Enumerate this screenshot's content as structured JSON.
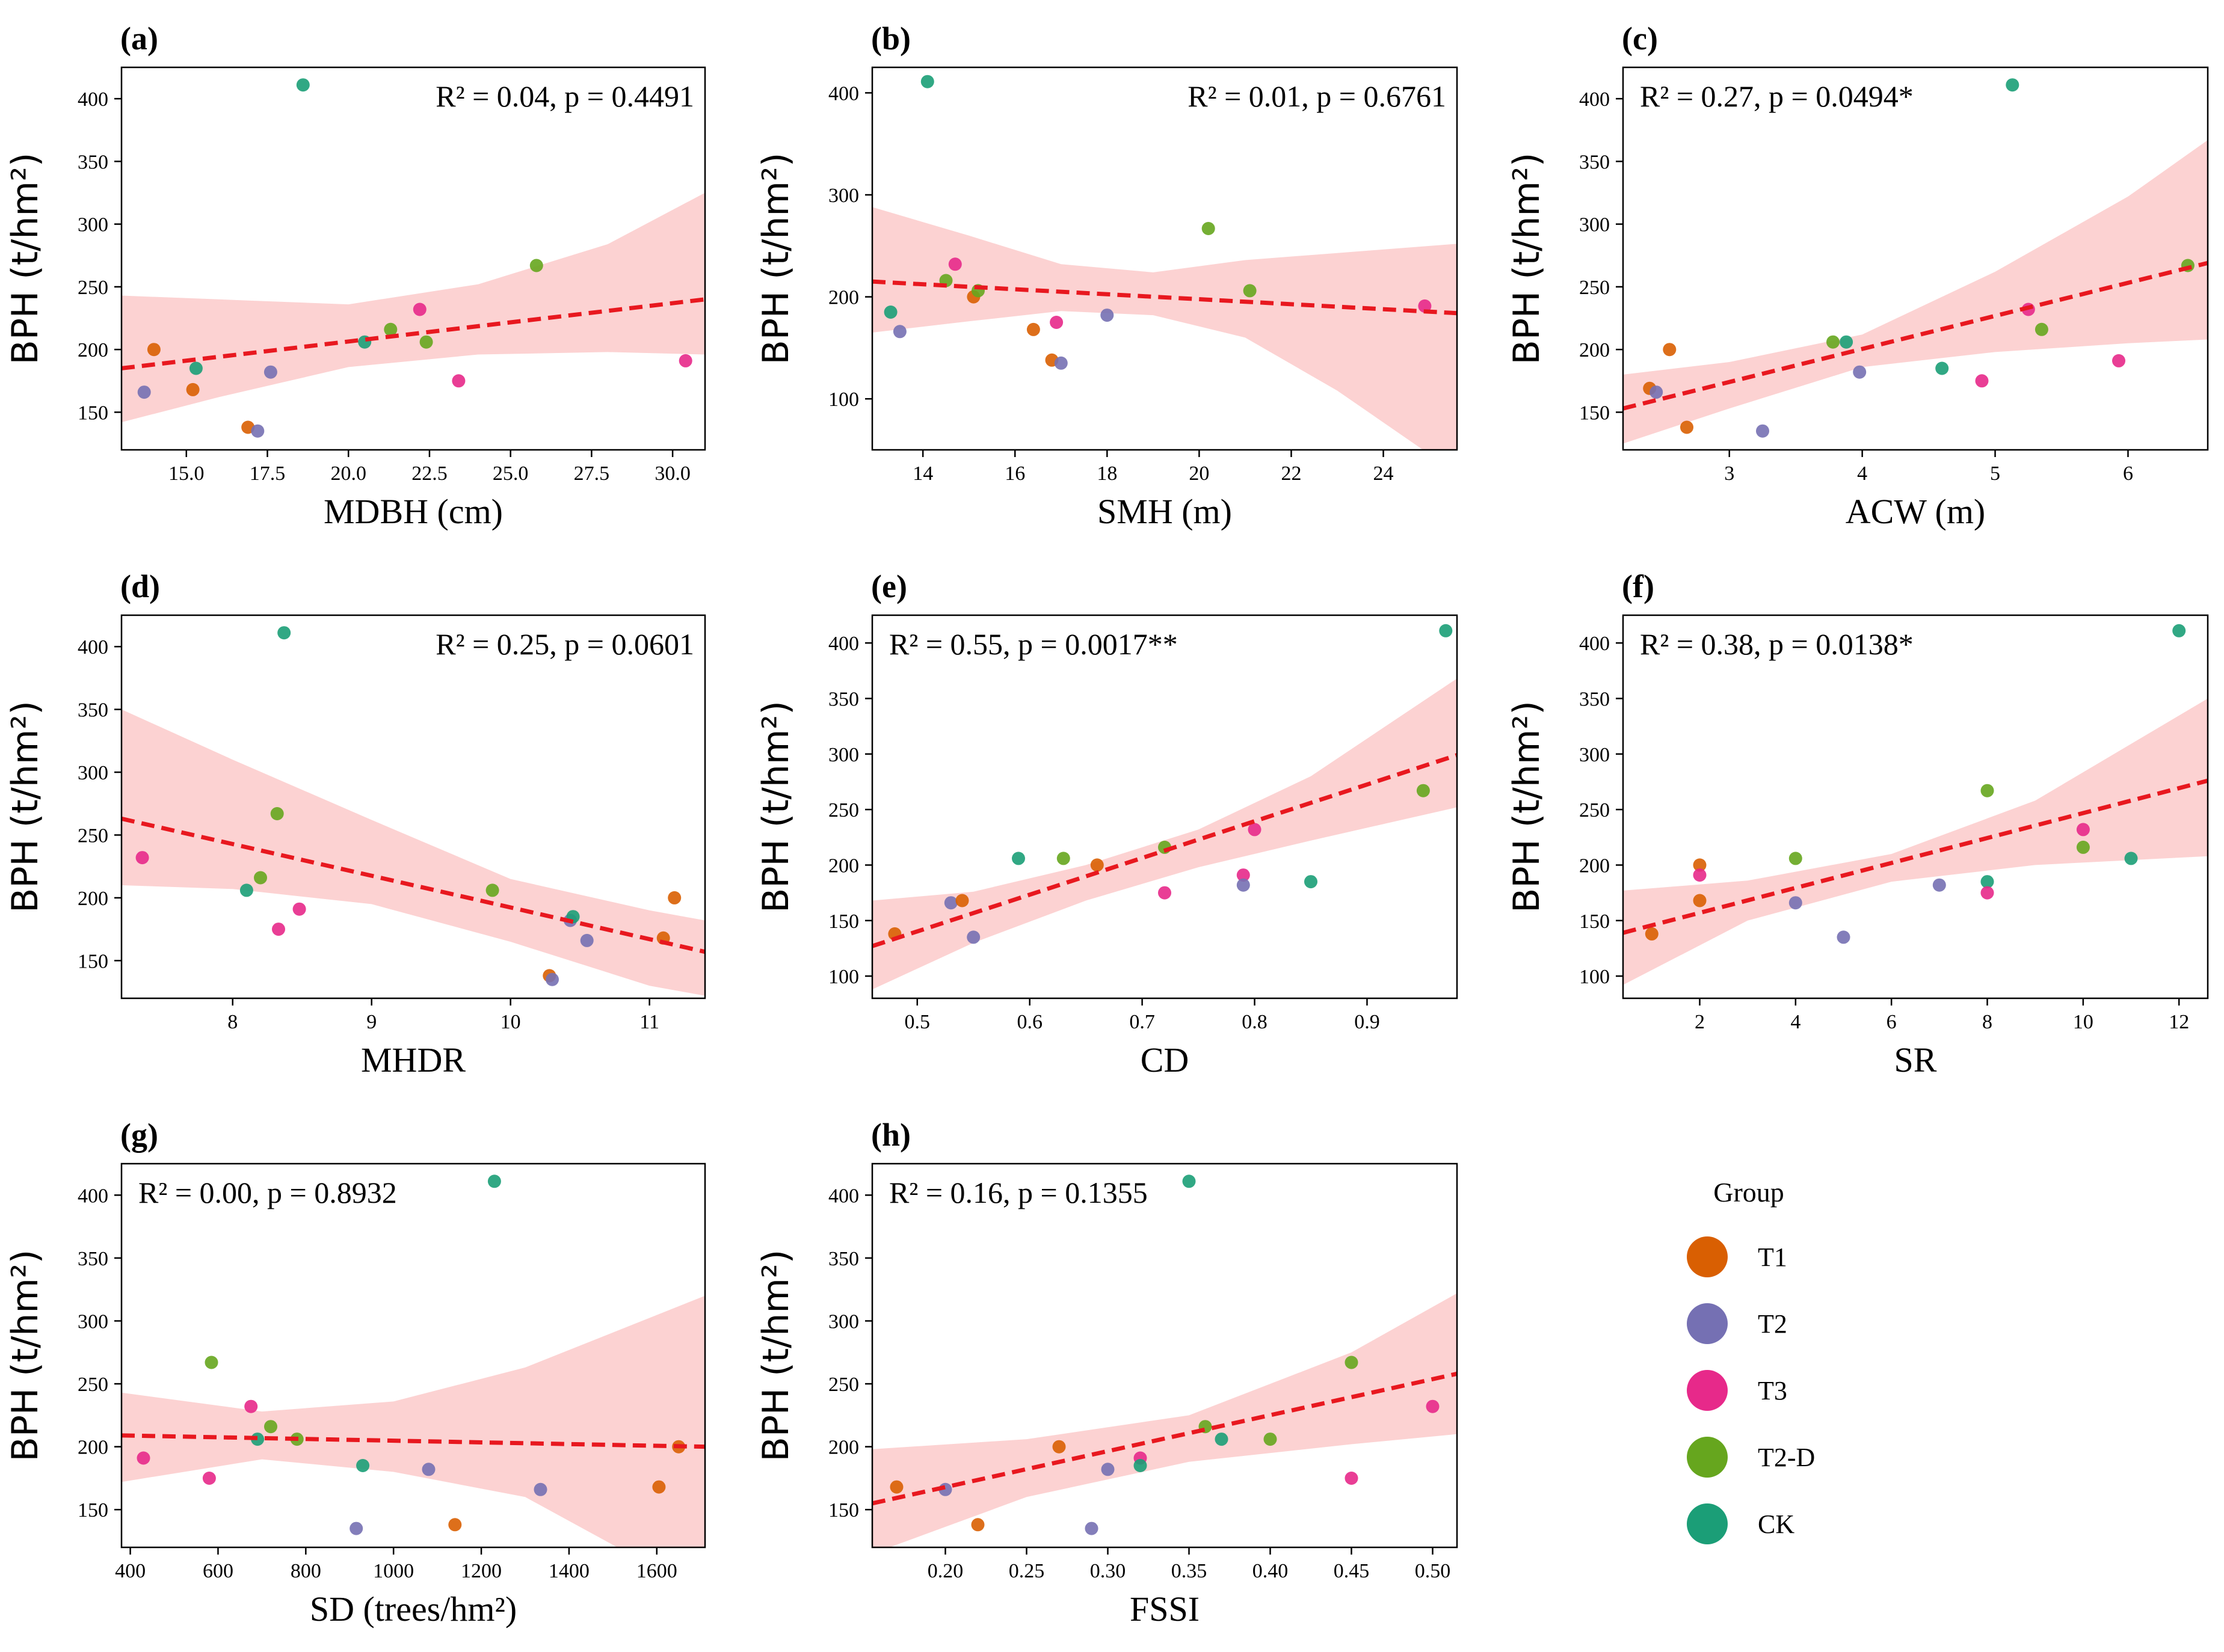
{
  "groups": [
    {
      "name": "T1",
      "color": "#d95f02"
    },
    {
      "name": "T2",
      "color": "#7570b3"
    },
    {
      "name": "T3",
      "color": "#e7298a"
    },
    {
      "name": "T2-D",
      "color": "#66a61e"
    },
    {
      "name": "CK",
      "color": "#1b9e77"
    }
  ],
  "legend": {
    "title": "Group"
  },
  "ylabel": "BPH (t/hm²)",
  "fit_color": "#e8181f",
  "band_color": "#fbcaca",
  "chart_data": [
    {
      "type": "scatter",
      "letter": "(a)",
      "xlabel": "MDBH (cm)",
      "ylabel": "BPH (t/hm²)",
      "stats": "R² = 0.04,  p = 0.4491",
      "stats_pos": "top-right",
      "xlim": [
        13.0,
        31.0
      ],
      "ylim": [
        120,
        425
      ],
      "xticks": [
        15.0,
        17.5,
        20.0,
        22.5,
        25.0,
        27.5,
        30.0
      ],
      "xtick_labels": [
        "15.0",
        "17.5",
        "20.0",
        "22.5",
        "25.0",
        "27.5",
        "30.0"
      ],
      "yticks": [
        150,
        200,
        250,
        300,
        350,
        400
      ],
      "fit": {
        "x": [
          13.0,
          31.0
        ],
        "y": [
          185,
          240
        ]
      },
      "band": {
        "x": [
          13.0,
          16.0,
          20.0,
          24.0,
          28.0,
          31.0
        ],
        "upper": [
          243,
          240,
          236,
          252,
          284,
          325
        ],
        "lower": [
          142,
          162,
          186,
          196,
          198,
          196
        ]
      },
      "points": [
        {
          "x": 13.7,
          "y": 166,
          "g": "T2"
        },
        {
          "x": 14.0,
          "y": 200,
          "g": "T1"
        },
        {
          "x": 15.2,
          "y": 168,
          "g": "T1"
        },
        {
          "x": 15.3,
          "y": 185,
          "g": "CK"
        },
        {
          "x": 16.9,
          "y": 138,
          "g": "T1"
        },
        {
          "x": 17.2,
          "y": 135,
          "g": "T2"
        },
        {
          "x": 17.6,
          "y": 182,
          "g": "T2"
        },
        {
          "x": 18.6,
          "y": 411,
          "g": "CK"
        },
        {
          "x": 20.5,
          "y": 206,
          "g": "CK"
        },
        {
          "x": 21.3,
          "y": 216,
          "g": "T2-D"
        },
        {
          "x": 22.2,
          "y": 232,
          "g": "T3"
        },
        {
          "x": 22.4,
          "y": 206,
          "g": "T2-D"
        },
        {
          "x": 23.4,
          "y": 175,
          "g": "T3"
        },
        {
          "x": 25.8,
          "y": 267,
          "g": "T2-D"
        },
        {
          "x": 30.4,
          "y": 191,
          "g": "T3"
        }
      ]
    },
    {
      "type": "scatter",
      "letter": "(b)",
      "xlabel": "SMH (m)",
      "ylabel": "BPH (t/hm²)",
      "stats": "R² = 0.01,  p = 0.6761",
      "stats_pos": "top-right",
      "xlim": [
        12.9,
        25.6
      ],
      "ylim": [
        50,
        425
      ],
      "xticks": [
        14,
        16,
        18,
        20,
        22,
        24
      ],
      "xtick_labels": [
        "14",
        "16",
        "18",
        "20",
        "22",
        "24"
      ],
      "yticks": [
        100,
        200,
        300,
        400
      ],
      "fit": {
        "x": [
          12.9,
          25.6
        ],
        "y": [
          215,
          184
        ]
      },
      "band": {
        "x": [
          12.9,
          15.0,
          17.0,
          19.0,
          21.0,
          23.0,
          25.6
        ],
        "upper": [
          288,
          260,
          232,
          224,
          236,
          243,
          252
        ],
        "lower": [
          165,
          176,
          186,
          182,
          160,
          108,
          27
        ]
      },
      "points": [
        {
          "x": 13.3,
          "y": 185,
          "g": "CK"
        },
        {
          "x": 13.5,
          "y": 166,
          "g": "T2"
        },
        {
          "x": 14.1,
          "y": 411,
          "g": "CK"
        },
        {
          "x": 14.5,
          "y": 216,
          "g": "T2-D"
        },
        {
          "x": 14.7,
          "y": 232,
          "g": "T3"
        },
        {
          "x": 15.1,
          "y": 200,
          "g": "T1"
        },
        {
          "x": 15.2,
          "y": 206,
          "g": "T2-D"
        },
        {
          "x": 16.4,
          "y": 168,
          "g": "T1"
        },
        {
          "x": 16.8,
          "y": 138,
          "g": "T1"
        },
        {
          "x": 16.9,
          "y": 175,
          "g": "T3"
        },
        {
          "x": 17.0,
          "y": 135,
          "g": "T2"
        },
        {
          "x": 18.0,
          "y": 182,
          "g": "T2"
        },
        {
          "x": 20.2,
          "y": 267,
          "g": "T2-D"
        },
        {
          "x": 21.1,
          "y": 206,
          "g": "T2-D"
        },
        {
          "x": 24.9,
          "y": 191,
          "g": "T3"
        }
      ]
    },
    {
      "type": "scatter",
      "letter": "(c)",
      "xlabel": "ACW (m)",
      "ylabel": "BPH (t/hm²)",
      "stats": "R² = 0.27,  p = 0.0494*",
      "stats_pos": "top-left",
      "xlim": [
        2.2,
        6.6
      ],
      "ylim": [
        120,
        425
      ],
      "xticks": [
        3,
        4,
        5,
        6
      ],
      "xtick_labels": [
        "3",
        "4",
        "5",
        "6"
      ],
      "yticks": [
        150,
        200,
        250,
        300,
        350,
        400
      ],
      "fit": {
        "x": [
          2.2,
          6.6
        ],
        "y": [
          153,
          269
        ]
      },
      "band": {
        "x": [
          2.2,
          3.0,
          4.0,
          5.0,
          6.0,
          6.6
        ],
        "upper": [
          180,
          190,
          212,
          262,
          322,
          367
        ],
        "lower": [
          125,
          153,
          186,
          198,
          205,
          208
        ]
      },
      "points": [
        {
          "x": 2.4,
          "y": 169,
          "g": "T1"
        },
        {
          "x": 2.45,
          "y": 166,
          "g": "T2"
        },
        {
          "x": 2.55,
          "y": 200,
          "g": "T1"
        },
        {
          "x": 2.68,
          "y": 138,
          "g": "T1"
        },
        {
          "x": 3.25,
          "y": 135,
          "g": "T2"
        },
        {
          "x": 3.78,
          "y": 206,
          "g": "T2-D"
        },
        {
          "x": 3.88,
          "y": 206,
          "g": "CK"
        },
        {
          "x": 3.98,
          "y": 182,
          "g": "T2"
        },
        {
          "x": 4.6,
          "y": 185,
          "g": "CK"
        },
        {
          "x": 4.9,
          "y": 175,
          "g": "T3"
        },
        {
          "x": 5.13,
          "y": 411,
          "g": "CK"
        },
        {
          "x": 5.25,
          "y": 232,
          "g": "T3"
        },
        {
          "x": 5.35,
          "y": 216,
          "g": "T2-D"
        },
        {
          "x": 5.93,
          "y": 191,
          "g": "T3"
        },
        {
          "x": 6.45,
          "y": 267,
          "g": "T2-D"
        }
      ]
    },
    {
      "type": "scatter",
      "letter": "(d)",
      "xlabel": "MHDR",
      "ylabel": "BPH (t/hm²)",
      "stats": "R² = 0.25,  p = 0.0601",
      "stats_pos": "top-right",
      "xlim": [
        7.2,
        11.4
      ],
      "ylim": [
        120,
        425
      ],
      "xticks": [
        8,
        9,
        10,
        11
      ],
      "xtick_labels": [
        "8",
        "9",
        "10",
        "11"
      ],
      "yticks": [
        150,
        200,
        250,
        300,
        350,
        400
      ],
      "fit": {
        "x": [
          7.2,
          11.4
        ],
        "y": [
          263,
          157
        ]
      },
      "band": {
        "x": [
          7.2,
          8.0,
          9.0,
          10.0,
          11.0,
          11.4
        ],
        "upper": [
          350,
          310,
          262,
          215,
          190,
          182
        ],
        "lower": [
          210,
          207,
          195,
          165,
          130,
          122
        ]
      },
      "points": [
        {
          "x": 7.35,
          "y": 232,
          "g": "T3"
        },
        {
          "x": 8.1,
          "y": 206,
          "g": "CK"
        },
        {
          "x": 8.2,
          "y": 216,
          "g": "T2-D"
        },
        {
          "x": 8.32,
          "y": 267,
          "g": "T2-D"
        },
        {
          "x": 8.33,
          "y": 175,
          "g": "T3"
        },
        {
          "x": 8.37,
          "y": 411,
          "g": "CK"
        },
        {
          "x": 8.48,
          "y": 191,
          "g": "T3"
        },
        {
          "x": 9.87,
          "y": 206,
          "g": "T2-D"
        },
        {
          "x": 10.28,
          "y": 138,
          "g": "T1"
        },
        {
          "x": 10.3,
          "y": 135,
          "g": "T2"
        },
        {
          "x": 10.43,
          "y": 182,
          "g": "T2"
        },
        {
          "x": 10.45,
          "y": 185,
          "g": "CK"
        },
        {
          "x": 10.55,
          "y": 166,
          "g": "T2"
        },
        {
          "x": 11.1,
          "y": 168,
          "g": "T1"
        },
        {
          "x": 11.18,
          "y": 200,
          "g": "T1"
        }
      ]
    },
    {
      "type": "scatter",
      "letter": "(e)",
      "xlabel": "CD",
      "ylabel": "BPH (t/hm²)",
      "stats": "R² = 0.55,  p = 0.0017**",
      "stats_pos": "top-left",
      "xlim": [
        0.46,
        0.98
      ],
      "ylim": [
        80,
        425
      ],
      "xticks": [
        0.5,
        0.6,
        0.7,
        0.8,
        0.9
      ],
      "xtick_labels": [
        "0.5",
        "0.6",
        "0.7",
        "0.8",
        "0.9"
      ],
      "yticks": [
        100,
        150,
        200,
        250,
        300,
        350,
        400
      ],
      "fit": {
        "x": [
          0.46,
          0.98
        ],
        "y": [
          127,
          299
        ]
      },
      "band": {
        "x": [
          0.46,
          0.55,
          0.65,
          0.75,
          0.85,
          0.98
        ],
        "upper": [
          168,
          176,
          200,
          232,
          280,
          368
        ],
        "lower": [
          88,
          130,
          168,
          198,
          222,
          252
        ]
      },
      "points": [
        {
          "x": 0.48,
          "y": 138,
          "g": "T1"
        },
        {
          "x": 0.53,
          "y": 166,
          "g": "T2"
        },
        {
          "x": 0.54,
          "y": 168,
          "g": "T1"
        },
        {
          "x": 0.55,
          "y": 135,
          "g": "T2"
        },
        {
          "x": 0.59,
          "y": 206,
          "g": "CK"
        },
        {
          "x": 0.63,
          "y": 206,
          "g": "T2-D"
        },
        {
          "x": 0.66,
          "y": 200,
          "g": "T1"
        },
        {
          "x": 0.72,
          "y": 216,
          "g": "T2-D"
        },
        {
          "x": 0.72,
          "y": 175,
          "g": "T3"
        },
        {
          "x": 0.79,
          "y": 191,
          "g": "T3"
        },
        {
          "x": 0.79,
          "y": 182,
          "g": "T2"
        },
        {
          "x": 0.8,
          "y": 232,
          "g": "T3"
        },
        {
          "x": 0.85,
          "y": 185,
          "g": "CK"
        },
        {
          "x": 0.95,
          "y": 267,
          "g": "T2-D"
        },
        {
          "x": 0.97,
          "y": 411,
          "g": "CK"
        }
      ]
    },
    {
      "type": "scatter",
      "letter": "(f)",
      "xlabel": "SR",
      "ylabel": "BPH (t/hm²)",
      "stats": "R² = 0.38,  p = 0.0138*",
      "stats_pos": "top-left",
      "xlim": [
        0.4,
        12.6
      ],
      "ylim": [
        80,
        425
      ],
      "xticks": [
        2,
        4,
        6,
        8,
        10,
        12
      ],
      "xtick_labels": [
        "2",
        "4",
        "6",
        "8",
        "10",
        "12"
      ],
      "yticks": [
        100,
        150,
        200,
        250,
        300,
        350,
        400
      ],
      "fit": {
        "x": [
          0.4,
          12.6
        ],
        "y": [
          139,
          276
        ]
      },
      "band": {
        "x": [
          0.4,
          3.0,
          6.0,
          9.0,
          12.6
        ],
        "upper": [
          177,
          186,
          210,
          258,
          350
        ],
        "lower": [
          92,
          150,
          185,
          200,
          208
        ]
      },
      "points": [
        {
          "x": 1,
          "y": 138,
          "g": "T1"
        },
        {
          "x": 2,
          "y": 168,
          "g": "T1"
        },
        {
          "x": 2,
          "y": 200,
          "g": "T1"
        },
        {
          "x": 2,
          "y": 191,
          "g": "T3"
        },
        {
          "x": 4,
          "y": 166,
          "g": "T2"
        },
        {
          "x": 4,
          "y": 206,
          "g": "T2-D"
        },
        {
          "x": 5,
          "y": 135,
          "g": "T2"
        },
        {
          "x": 7,
          "y": 182,
          "g": "T2"
        },
        {
          "x": 8,
          "y": 185,
          "g": "CK"
        },
        {
          "x": 8,
          "y": 175,
          "g": "T3"
        },
        {
          "x": 8,
          "y": 267,
          "g": "T2-D"
        },
        {
          "x": 10,
          "y": 232,
          "g": "T3"
        },
        {
          "x": 10,
          "y": 216,
          "g": "T2-D"
        },
        {
          "x": 11,
          "y": 206,
          "g": "CK"
        },
        {
          "x": 12,
          "y": 411,
          "g": "CK"
        }
      ]
    },
    {
      "type": "scatter",
      "letter": "(g)",
      "xlabel": "SD (trees/hm²)",
      "ylabel": "BPH (t/hm²)",
      "stats": "R² = 0.00,  p = 0.8932",
      "stats_pos": "top-left",
      "xlim": [
        380,
        1710
      ],
      "ylim": [
        120,
        425
      ],
      "xticks": [
        400,
        600,
        800,
        1000,
        1200,
        1400,
        1600
      ],
      "xtick_labels": [
        "400",
        "600",
        "800",
        "1000",
        "1200",
        "1400",
        "1600"
      ],
      "yticks": [
        150,
        200,
        250,
        300,
        350,
        400
      ],
      "fit": {
        "x": [
          380,
          1710
        ],
        "y": [
          209,
          200
        ]
      },
      "band": {
        "x": [
          380,
          700,
          1000,
          1300,
          1710
        ],
        "upper": [
          243,
          228,
          236,
          263,
          320
        ],
        "lower": [
          172,
          190,
          180,
          160,
          82
        ]
      },
      "points": [
        {
          "x": 430,
          "y": 191,
          "g": "T3"
        },
        {
          "x": 580,
          "y": 175,
          "g": "T3"
        },
        {
          "x": 585,
          "y": 267,
          "g": "T2-D"
        },
        {
          "x": 675,
          "y": 232,
          "g": "T3"
        },
        {
          "x": 690,
          "y": 206,
          "g": "CK"
        },
        {
          "x": 720,
          "y": 216,
          "g": "T2-D"
        },
        {
          "x": 780,
          "y": 206,
          "g": "T2-D"
        },
        {
          "x": 915,
          "y": 135,
          "g": "T2"
        },
        {
          "x": 930,
          "y": 185,
          "g": "CK"
        },
        {
          "x": 1080,
          "y": 182,
          "g": "T2"
        },
        {
          "x": 1140,
          "y": 138,
          "g": "T1"
        },
        {
          "x": 1230,
          "y": 411,
          "g": "CK"
        },
        {
          "x": 1335,
          "y": 166,
          "g": "T2"
        },
        {
          "x": 1605,
          "y": 168,
          "g": "T1"
        },
        {
          "x": 1650,
          "y": 200,
          "g": "T1"
        }
      ]
    },
    {
      "type": "scatter",
      "letter": "(h)",
      "xlabel": "FSSI",
      "ylabel": "BPH (t/hm²)",
      "stats": "R² = 0.16,  p = 0.1355",
      "stats_pos": "top-left",
      "xlim": [
        0.155,
        0.515
      ],
      "ylim": [
        120,
        425
      ],
      "xticks": [
        0.2,
        0.25,
        0.3,
        0.35,
        0.4,
        0.45,
        0.5
      ],
      "xtick_labels": [
        "0.20",
        "0.25",
        "0.30",
        "0.35",
        "0.40",
        "0.45",
        "0.50"
      ],
      "yticks": [
        150,
        200,
        250,
        300,
        350,
        400
      ],
      "fit": {
        "x": [
          0.155,
          0.515
        ],
        "y": [
          155,
          258
        ]
      },
      "band": {
        "x": [
          0.155,
          0.25,
          0.35,
          0.45,
          0.515
        ],
        "upper": [
          198,
          206,
          225,
          275,
          322
        ],
        "lower": [
          115,
          160,
          188,
          202,
          210
        ]
      },
      "points": [
        {
          "x": 0.17,
          "y": 168,
          "g": "T1"
        },
        {
          "x": 0.2,
          "y": 166,
          "g": "T2"
        },
        {
          "x": 0.22,
          "y": 138,
          "g": "T1"
        },
        {
          "x": 0.27,
          "y": 200,
          "g": "T1"
        },
        {
          "x": 0.29,
          "y": 135,
          "g": "T2"
        },
        {
          "x": 0.3,
          "y": 182,
          "g": "T2"
        },
        {
          "x": 0.32,
          "y": 191,
          "g": "T3"
        },
        {
          "x": 0.32,
          "y": 185,
          "g": "CK"
        },
        {
          "x": 0.35,
          "y": 411,
          "g": "CK"
        },
        {
          "x": 0.36,
          "y": 216,
          "g": "T2-D"
        },
        {
          "x": 0.37,
          "y": 206,
          "g": "CK"
        },
        {
          "x": 0.4,
          "y": 206,
          "g": "T2-D"
        },
        {
          "x": 0.45,
          "y": 175,
          "g": "T3"
        },
        {
          "x": 0.45,
          "y": 267,
          "g": "T2-D"
        },
        {
          "x": 0.5,
          "y": 232,
          "g": "T3"
        }
      ]
    }
  ]
}
